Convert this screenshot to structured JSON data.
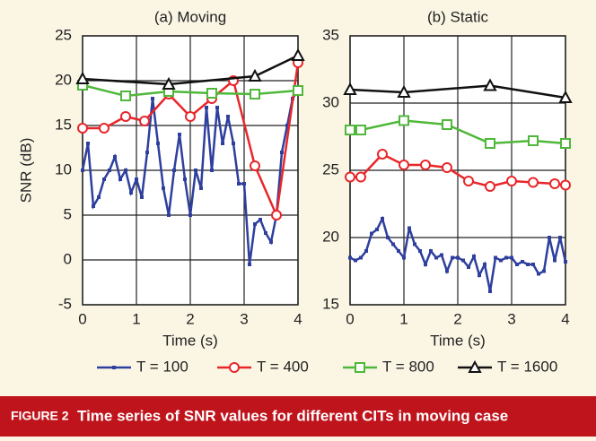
{
  "chart_data": [
    {
      "type": "line",
      "title": "(a) Moving",
      "xlabel": "Time (s)",
      "ylabel": "SNR (dB)",
      "xlim": [
        0,
        4
      ],
      "xticks": [
        0,
        1,
        2,
        3,
        4
      ],
      "ylim": [
        -5,
        25
      ],
      "yticks": [
        -5,
        0,
        5,
        10,
        15,
        20,
        25
      ],
      "grid": true,
      "series": [
        {
          "name": "T = 100",
          "color": "#2e3f9e",
          "marker": "dot",
          "x": [
            0,
            0.1,
            0.2,
            0.3,
            0.4,
            0.5,
            0.6,
            0.7,
            0.8,
            0.9,
            1.0,
            1.1,
            1.2,
            1.3,
            1.4,
            1.5,
            1.6,
            1.7,
            1.8,
            1.9,
            2.0,
            2.1,
            2.2,
            2.3,
            2.4,
            2.5,
            2.6,
            2.7,
            2.8,
            2.9,
            3.0,
            3.1,
            3.2,
            3.3,
            3.4,
            3.5,
            3.6,
            3.7,
            3.8,
            3.9,
            4.0
          ],
          "values": [
            10,
            13,
            6,
            7,
            9,
            10,
            11.5,
            9,
            10,
            7.5,
            9,
            7,
            12,
            18,
            13,
            8,
            5,
            10,
            14,
            9,
            5,
            10,
            8,
            17,
            10,
            17,
            13,
            16,
            13,
            8.5,
            8.5,
            -0.5,
            4,
            4.5,
            3,
            2,
            5,
            12,
            15,
            18,
            19
          ]
        },
        {
          "name": "T = 400",
          "color": "#e8262a",
          "marker": "circle",
          "x": [
            0,
            0.4,
            0.8,
            1.15,
            1.6,
            2,
            2.4,
            2.8,
            3.2,
            3.6,
            4
          ],
          "values": [
            14.7,
            14.7,
            16,
            15.5,
            18.5,
            16,
            18,
            20,
            10.5,
            5,
            22
          ]
        },
        {
          "name": "T = 800",
          "color": "#4fb83a",
          "marker": "square",
          "x": [
            0,
            0.8,
            1.6,
            2.4,
            3.2,
            4
          ],
          "values": [
            19.5,
            18.3,
            18.8,
            18.6,
            18.5,
            18.9
          ]
        },
        {
          "name": "T = 1600",
          "color": "#111111",
          "marker": "triangle",
          "x": [
            0,
            1.6,
            3.2,
            4
          ],
          "values": [
            20.2,
            19.6,
            20.5,
            22.8
          ]
        }
      ]
    },
    {
      "type": "line",
      "title": "(b) Static",
      "xlabel": "Time (s)",
      "xlim": [
        0,
        4
      ],
      "xticks": [
        0,
        1,
        2,
        3,
        4
      ],
      "ylim": [
        15,
        35
      ],
      "yticks": [
        15,
        20,
        25,
        30,
        35
      ],
      "grid": true,
      "series": [
        {
          "color": "#2e3f9e",
          "marker": "dot",
          "x": [
            0,
            0.1,
            0.2,
            0.3,
            0.4,
            0.5,
            0.6,
            0.7,
            0.8,
            0.9,
            1.0,
            1.1,
            1.2,
            1.3,
            1.4,
            1.5,
            1.6,
            1.7,
            1.8,
            1.9,
            2.0,
            2.1,
            2.2,
            2.3,
            2.4,
            2.5,
            2.6,
            2.7,
            2.8,
            2.9,
            3.0,
            3.1,
            3.2,
            3.3,
            3.4,
            3.5,
            3.6,
            3.7,
            3.8,
            3.9,
            4.0
          ],
          "values": [
            18.5,
            18.3,
            18.5,
            19,
            20.3,
            20.6,
            21.4,
            20,
            19.5,
            19,
            18.5,
            20.7,
            19.5,
            19,
            18,
            19,
            18.5,
            18.7,
            17.5,
            18.5,
            18.5,
            18.3,
            17.8,
            18.6,
            17.2,
            18,
            16,
            18.5,
            18.3,
            18.5,
            18.5,
            18,
            18.2,
            18,
            18,
            17.3,
            17.5,
            20,
            18.3,
            20,
            18.2
          ]
        },
        {
          "color": "#e8262a",
          "marker": "circle",
          "x": [
            0,
            0.2,
            0.6,
            1,
            1.4,
            1.8,
            2.2,
            2.6,
            3,
            3.4,
            3.8,
            4
          ],
          "values": [
            24.5,
            24.5,
            26.2,
            25.4,
            25.4,
            25.2,
            24.2,
            23.8,
            24.2,
            24.1,
            24,
            23.9
          ]
        },
        {
          "color": "#4fb83a",
          "marker": "square",
          "x": [
            0,
            0.2,
            1,
            1.8,
            2.6,
            3.4,
            4
          ],
          "values": [
            28,
            28,
            28.7,
            28.4,
            27,
            27.2,
            27
          ]
        },
        {
          "color": "#111111",
          "marker": "triangle",
          "x": [
            0,
            1,
            2.6,
            4
          ],
          "values": [
            31,
            30.8,
            31.3,
            30.4
          ]
        }
      ]
    }
  ],
  "figure_label": "FIGURE 2",
  "caption": "Time series of SNR values for different CITs in moving case"
}
